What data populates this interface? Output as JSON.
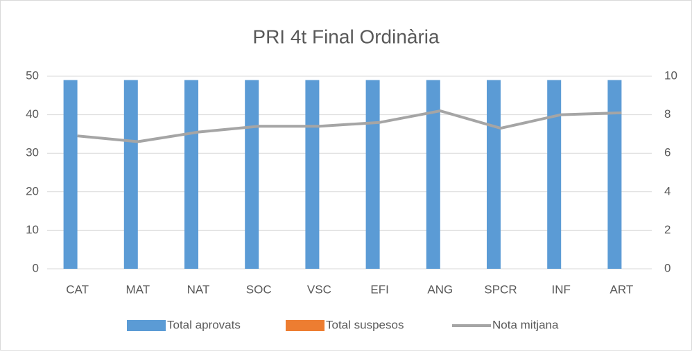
{
  "chart_data": {
    "type": "bar",
    "title": "PRI 4t Final Ordinària",
    "categories": [
      "CAT",
      "MAT",
      "NAT",
      "SOC",
      "VSC",
      "EFI",
      "ANG",
      "SPCR",
      "INF",
      "ART"
    ],
    "series": [
      {
        "name": "Total aprovats",
        "color": "#5b9bd5",
        "values": [
          49,
          49,
          49,
          49,
          49,
          49,
          49,
          49,
          49,
          49
        ]
      },
      {
        "name": "Total suspesos",
        "color": "#ed7d31",
        "values": [
          0,
          0,
          0,
          0,
          0,
          0,
          0,
          0,
          0,
          0
        ]
      },
      {
        "name": "Nota mitjana",
        "color": "#a5a5a5",
        "type": "line",
        "axis": "y2",
        "values": [
          6.9,
          6.6,
          7.1,
          7.4,
          7.4,
          7.6,
          8.2,
          7.3,
          8.0,
          8.1
        ]
      }
    ],
    "ylim": [
      0,
      50
    ],
    "yticks": [
      0,
      10,
      20,
      30,
      40,
      50
    ],
    "y2lim": [
      0,
      10
    ],
    "y2ticks": [
      0,
      2,
      4,
      6,
      8,
      10
    ],
    "grid": true,
    "legend": "bottom"
  }
}
